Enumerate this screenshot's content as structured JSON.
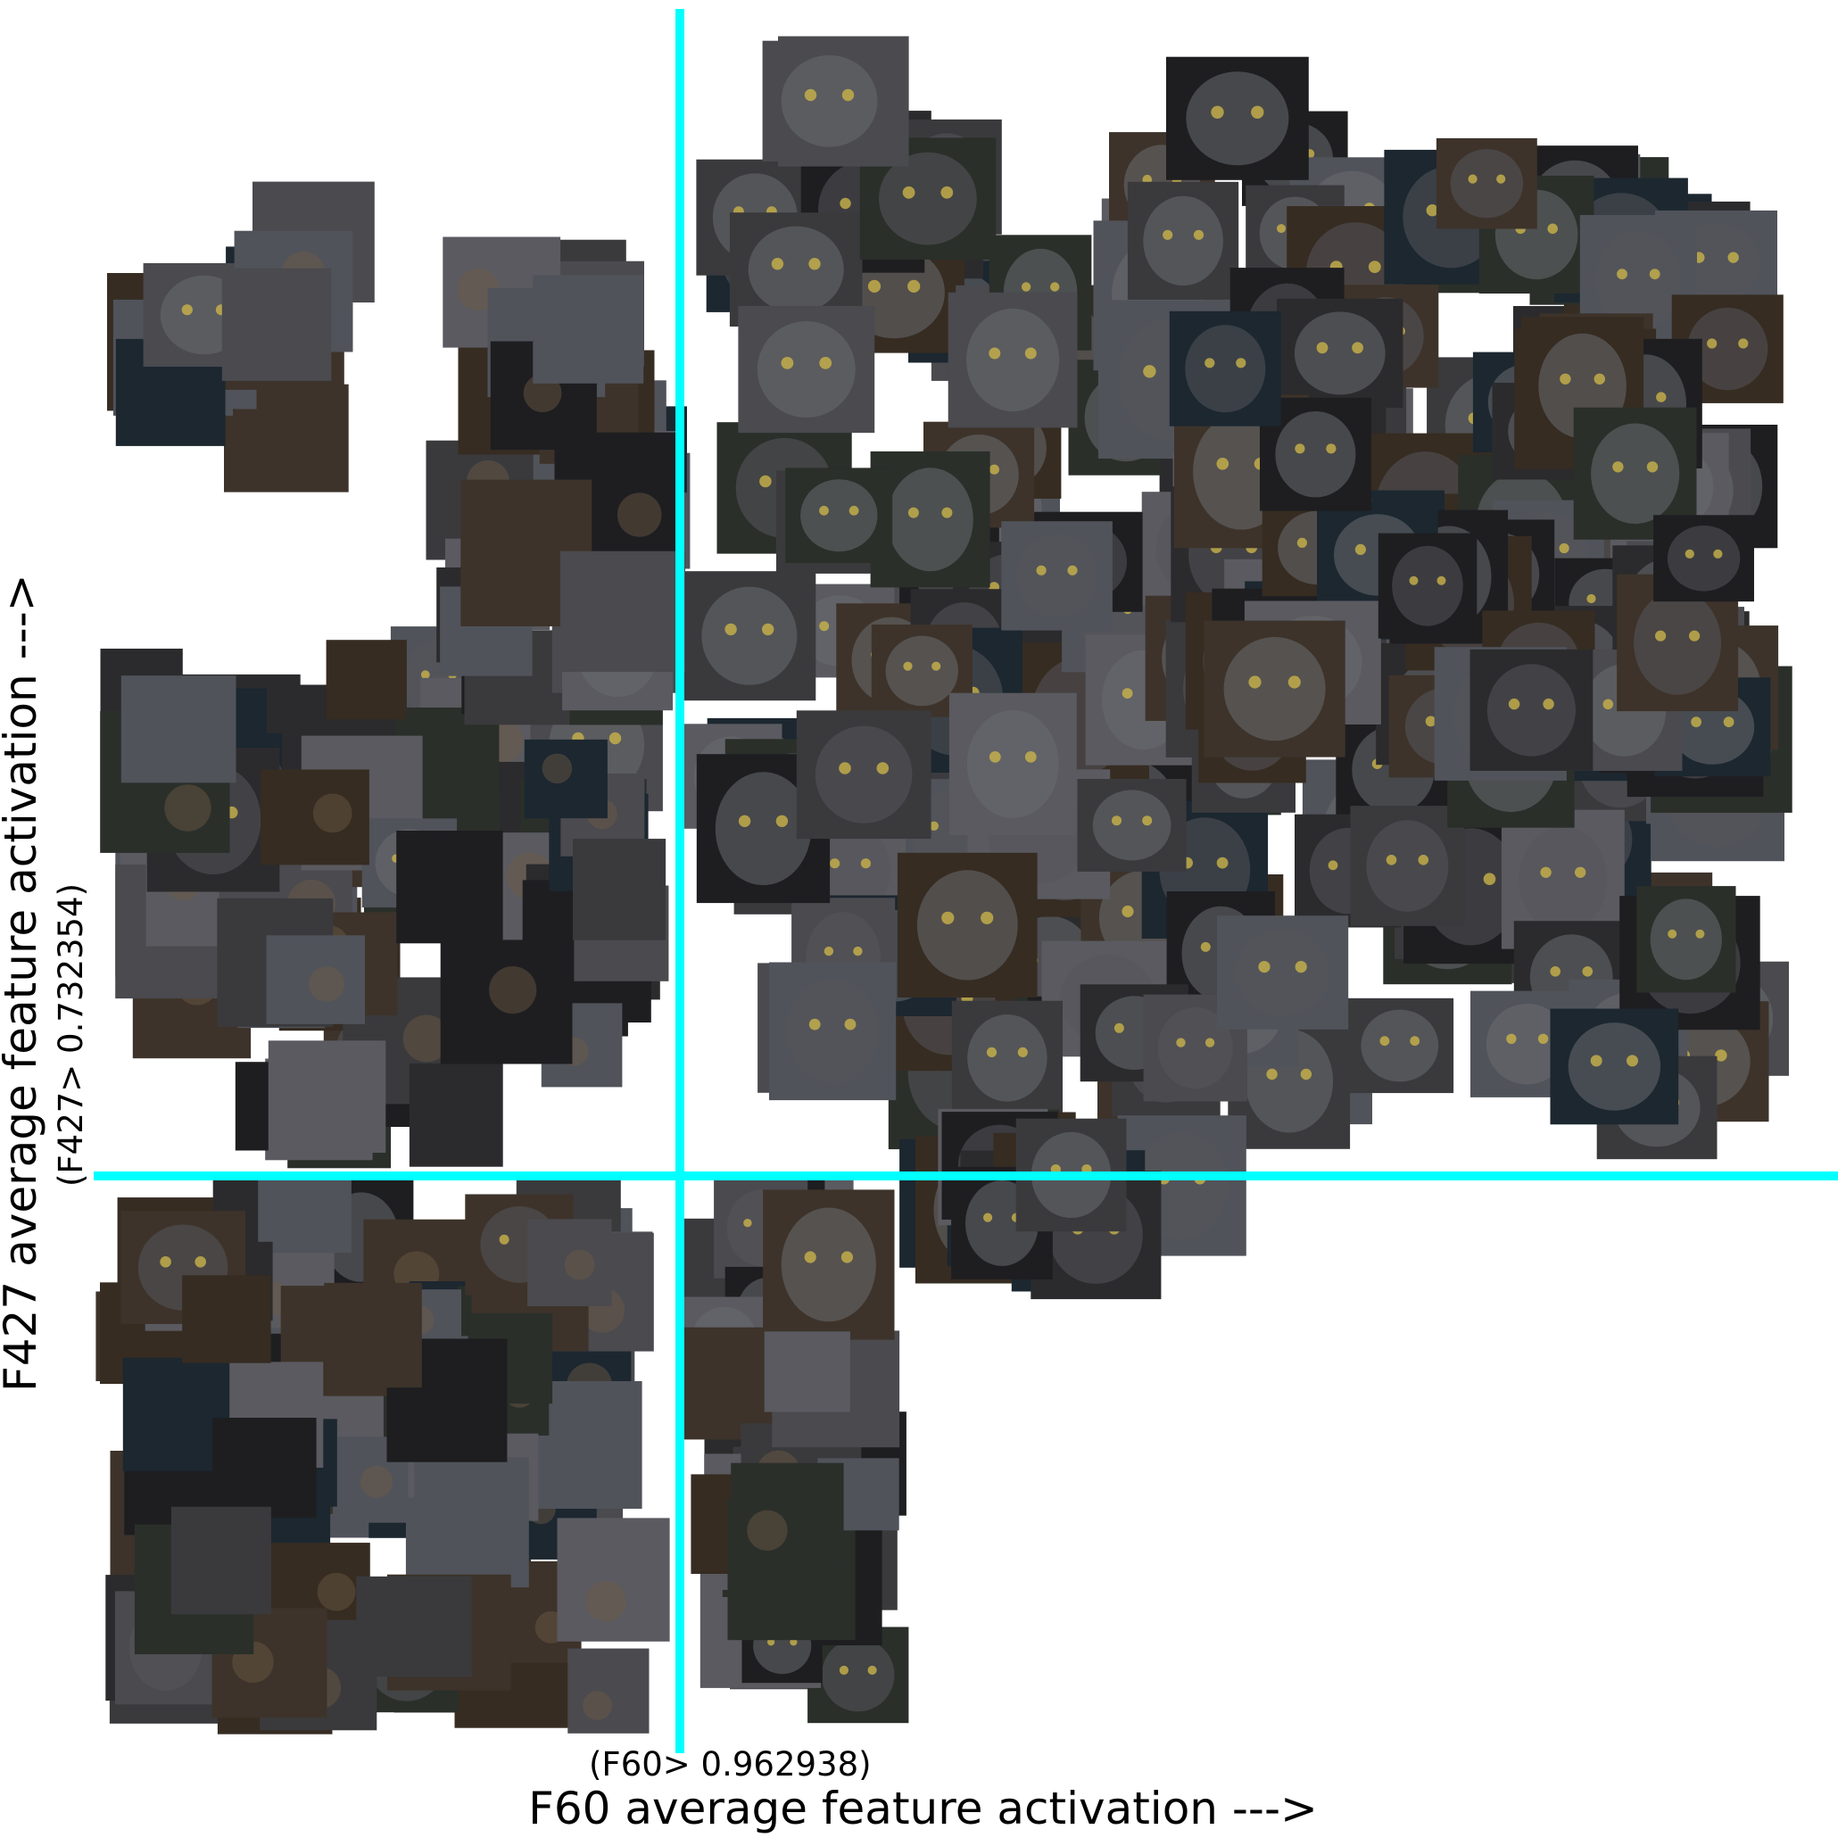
{
  "chart_data": {
    "type": "scatter",
    "title": "",
    "xlabel": "F60 average feature activation --->",
    "ylabel": "F427 average feature activation --->",
    "x_threshold_label": "(F60> 0.962938)",
    "y_threshold_label": "(F427> 0.732354)",
    "x_threshold": 0.962938,
    "y_threshold": 0.732354,
    "xlim": [
      0,
      1
    ],
    "ylim": [
      0,
      1
    ],
    "threshold_line_color": "#00ffff",
    "background": "#ffffff",
    "point_palette": [
      "#2b2b2d",
      "#3a3a3d",
      "#4a4a4f",
      "#1e1e21",
      "#5a5a60",
      "#362c22",
      "#2a2f2a",
      "#1c2730",
      "#3d332a",
      "#50535a"
    ],
    "marker": "image thumbnail",
    "grid": false,
    "legend": "none"
  }
}
